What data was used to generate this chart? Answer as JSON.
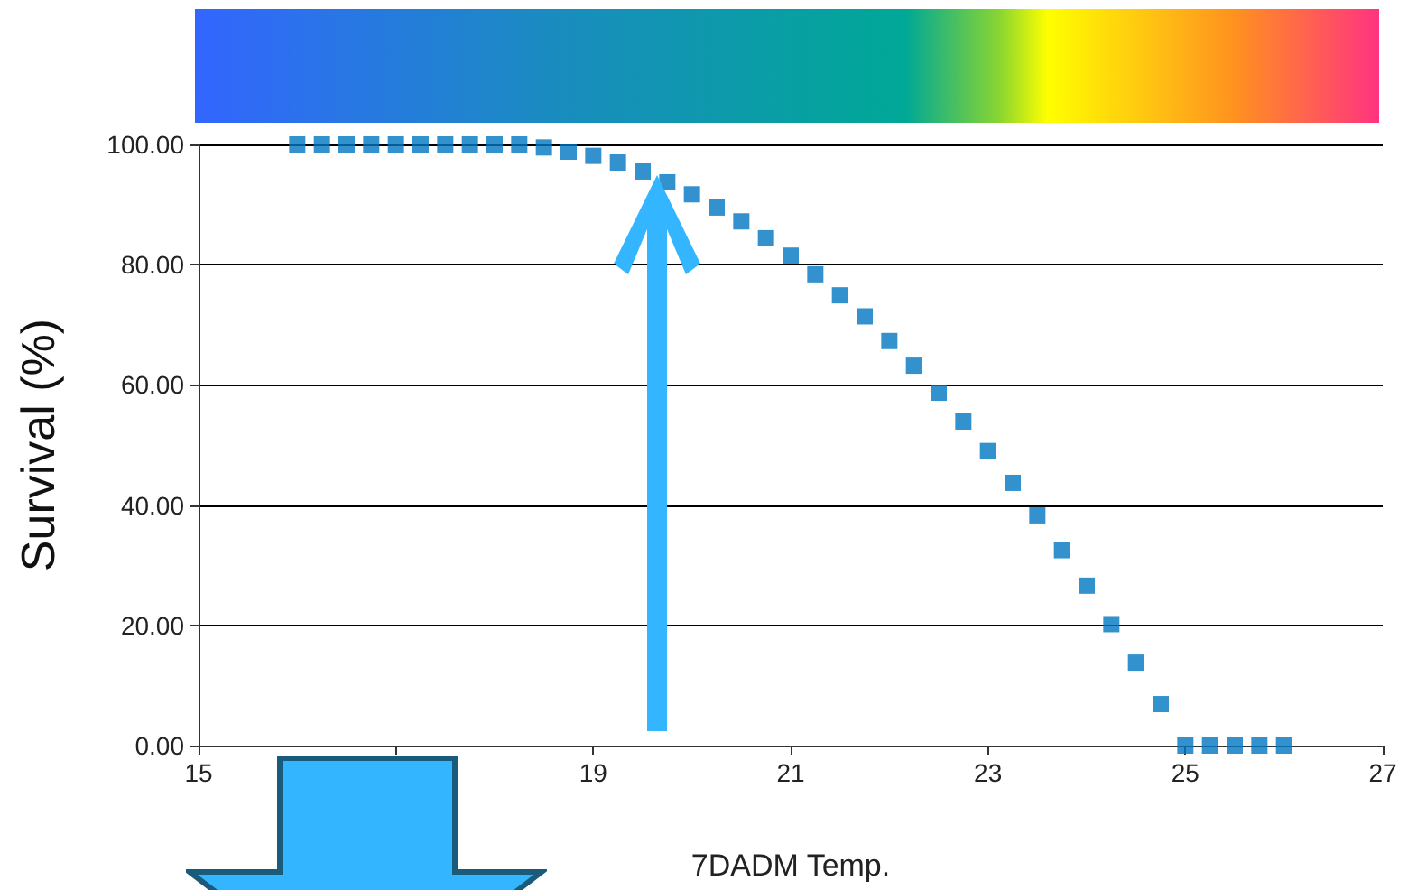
{
  "chart_data": {
    "type": "scatter",
    "xlabel": "7DADM Temp.",
    "ylabel": "Survival (%)",
    "x": [
      16,
      16.25,
      16.5,
      16.75,
      17,
      17.25,
      17.5,
      17.75,
      18,
      18.25,
      18.5,
      18.75,
      19,
      19.25,
      19.5,
      19.75,
      20,
      20.25,
      20.5,
      20.75,
      21,
      21.25,
      21.5,
      21.75,
      22,
      22.25,
      22.5,
      22.75,
      23,
      23.25,
      23.5,
      23.75,
      24,
      24.25,
      24.5,
      24.75,
      25,
      25.25,
      25.5,
      25.75,
      26
    ],
    "series": [
      {
        "color": "#0077c0",
        "values": [
          100,
          100,
          100,
          100,
          100,
          100,
          100,
          100,
          100,
          100,
          99.5,
          98.8,
          98.1,
          97,
          95.5,
          93.7,
          91.7,
          89.5,
          87.2,
          84.4,
          81.5,
          78.4,
          74.9,
          71.4,
          67.3,
          63.2,
          58.7,
          53.9,
          49,
          43.7,
          38.3,
          32.5,
          26.6,
          20.2,
          13.8,
          6.9,
          0,
          0,
          0,
          0,
          0
        ]
      }
    ],
    "xlim": [
      15,
      27
    ],
    "xticks": [
      15,
      {
        "value": 17,
        "label": null
      },
      19,
      21,
      23,
      25,
      27
    ],
    "ylim": [
      0,
      100
    ],
    "yticks": [
      {
        "value": 0,
        "label": "0.00"
      },
      {
        "value": 20,
        "label": "20.00"
      },
      {
        "value": 40,
        "label": "40.00"
      },
      {
        "value": 60,
        "label": "60.00"
      },
      {
        "value": 80,
        "label": "80.00"
      },
      {
        "value": 100,
        "label": "100.00"
      }
    ],
    "grid": "y",
    "marker": "square"
  }
}
